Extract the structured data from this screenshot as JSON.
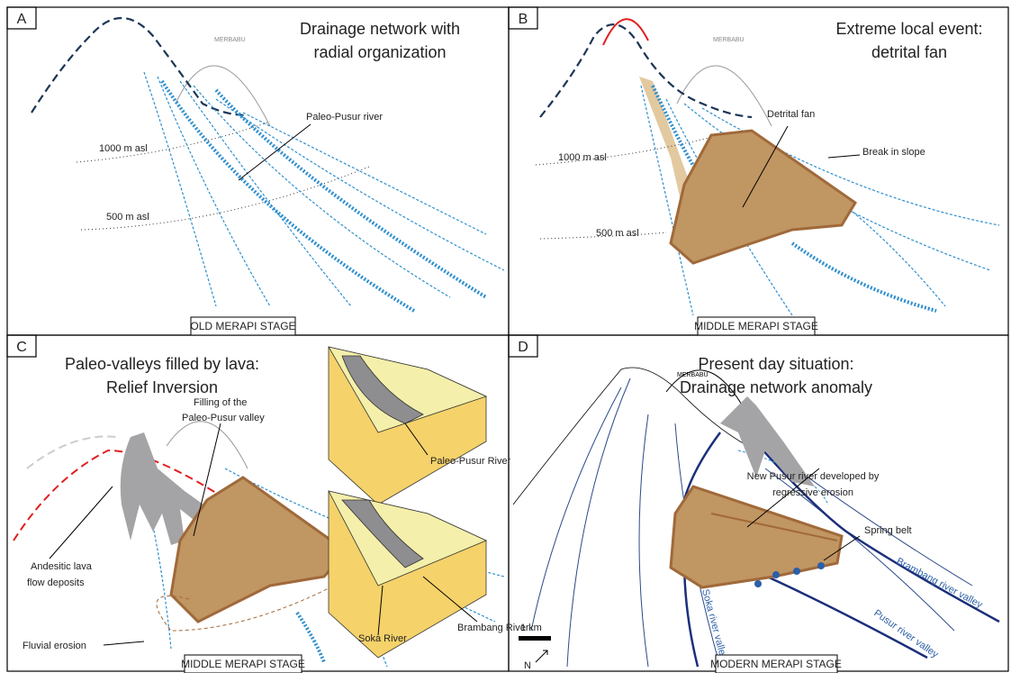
{
  "panels": [
    {
      "letter": "A",
      "mountain": "MERBABU",
      "title": [
        "Drainage network with",
        "radial organization"
      ],
      "labels": [
        "Paleo-Pusur river",
        "1000 m asl",
        "500 m asl"
      ],
      "stage": "OLD MERAPI STAGE"
    },
    {
      "letter": "B",
      "mountain": "MERBABU",
      "title": [
        "Extreme local event:",
        "detrital fan"
      ],
      "labels": [
        "Detrital fan",
        "Break in slope",
        "1000 m asl",
        "500 m asl"
      ],
      "stage": "MIDDLE MERAPI STAGE"
    },
    {
      "letter": "C",
      "title": [
        "Paleo-valleys filled by lava:",
        "Relief Inversion"
      ],
      "labels": [
        "Filling of the",
        "Paleo-Pusur valley",
        "Andesitic lava",
        "flow deposits",
        "Fluvial erosion",
        "Paleo-Pusur River",
        "Soka River",
        "Brambang River"
      ],
      "stage": "MIDDLE MERAPI STAGE"
    },
    {
      "letter": "D",
      "mountain": "MERBABU",
      "title": [
        "Present day situation:",
        "Drainage network anomaly"
      ],
      "labels": [
        "New Pusur river developed by",
        "regressive erosion",
        "Spring belt",
        "Brambang river valley",
        "Soka river valley",
        "Pusur river valley",
        "1 km",
        "N"
      ],
      "stage": "MODERN MERAPI STAGE"
    }
  ]
}
